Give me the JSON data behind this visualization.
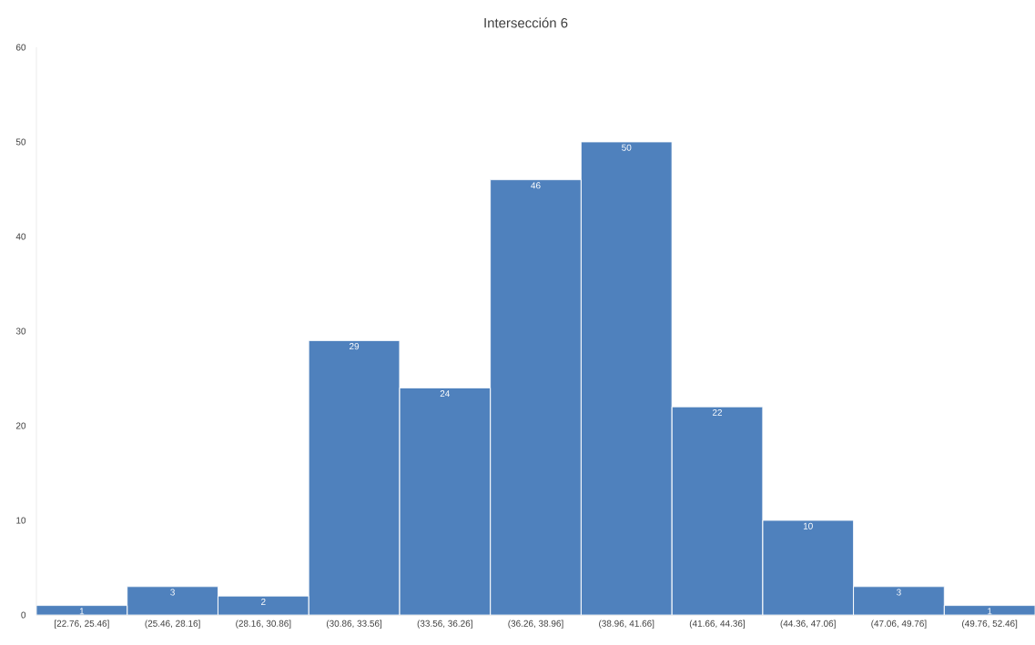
{
  "chart_data": {
    "type": "bar",
    "title": "Intersección 6",
    "categories": [
      "[22.76, 25.46]",
      "(25.46, 28.16]",
      "(28.16, 30.86]",
      "(30.86, 33.56]",
      "(33.56, 36.26]",
      "(36.26, 38.96]",
      "(38.96, 41.66]",
      "(41.66, 44.36]",
      "(44.36, 47.06]",
      "(47.06, 49.76]",
      "(49.76, 52.46]"
    ],
    "values": [
      1,
      3,
      2,
      29,
      24,
      46,
      50,
      22,
      10,
      3,
      1
    ],
    "color": "#4f81bd",
    "ylim": [
      0,
      60
    ],
    "yticks": [
      0,
      10,
      20,
      30,
      40,
      50,
      60
    ],
    "data_labels": true
  }
}
